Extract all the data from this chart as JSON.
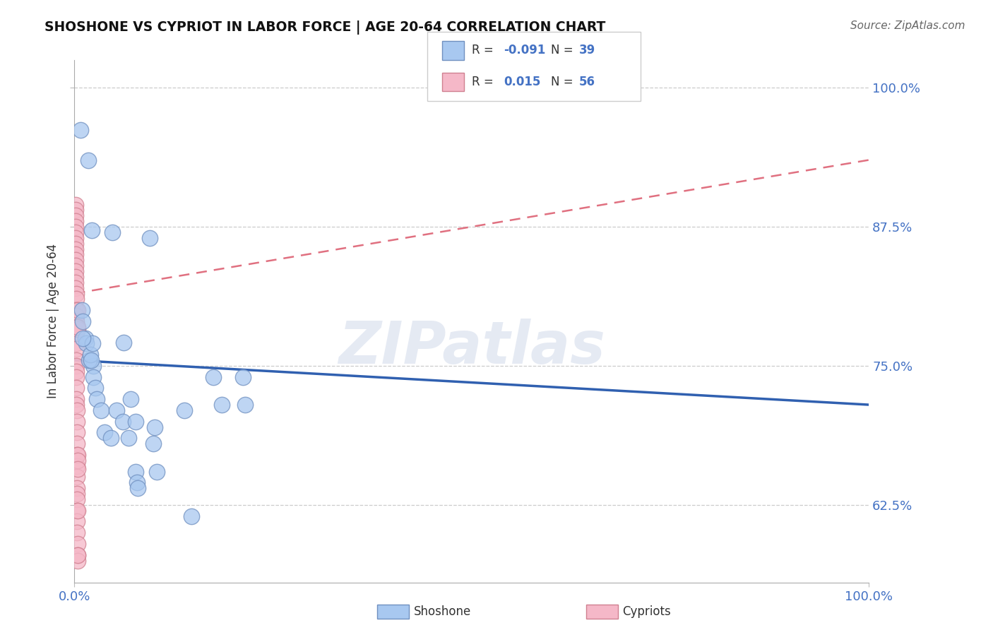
{
  "title": "SHOSHONE VS CYPRIOT IN LABOR FORCE | AGE 20-64 CORRELATION CHART",
  "source": "Source: ZipAtlas.com",
  "ylabel": "In Labor Force | Age 20-64",
  "xlim": [
    0.0,
    1.0
  ],
  "ylim": [
    0.555,
    1.025
  ],
  "yticks": [
    0.625,
    0.75,
    0.875,
    1.0
  ],
  "ytick_labels": [
    "62.5%",
    "75.0%",
    "87.5%",
    "100.0%"
  ],
  "xtick_labels": [
    "0.0%",
    "100.0%"
  ],
  "legend_shoshone_R": "-0.091",
  "legend_shoshone_N": "39",
  "legend_cypriot_R": "0.015",
  "legend_cypriot_N": "56",
  "legend_shoshone_label": "Shoshone",
  "legend_cypriot_label": "Cypriots",
  "shoshone_color": "#a8c8f0",
  "cypriot_color": "#f5b8c8",
  "shoshone_edge_color": "#7090c0",
  "cypriot_edge_color": "#d08090",
  "shoshone_line_color": "#3060b0",
  "cypriot_line_color": "#e07080",
  "watermark_text": "ZIPatlas",
  "shoshone_trend_x0": 0.0,
  "shoshone_trend_y0": 0.755,
  "shoshone_trend_x1": 1.0,
  "shoshone_trend_y1": 0.715,
  "cypriot_trend_x0": 0.0,
  "cypriot_trend_y0": 0.815,
  "cypriot_trend_x1": 1.0,
  "cypriot_trend_y1": 0.935,
  "shoshone_x": [
    0.008,
    0.022,
    0.048,
    0.062,
    0.095,
    0.138,
    0.175,
    0.185,
    0.017,
    0.024,
    0.009,
    0.01,
    0.014,
    0.015,
    0.018,
    0.02,
    0.021,
    0.023,
    0.024,
    0.026,
    0.028,
    0.033,
    0.038,
    0.046,
    0.053,
    0.061,
    0.068,
    0.071,
    0.077,
    0.077,
    0.079,
    0.08,
    0.099,
    0.101,
    0.104,
    0.147,
    0.212,
    0.215,
    0.01
  ],
  "shoshone_y": [
    0.962,
    0.872,
    0.87,
    0.771,
    0.865,
    0.71,
    0.74,
    0.715,
    0.935,
    0.75,
    0.8,
    0.79,
    0.775,
    0.77,
    0.755,
    0.76,
    0.755,
    0.77,
    0.74,
    0.73,
    0.72,
    0.71,
    0.69,
    0.685,
    0.71,
    0.7,
    0.685,
    0.72,
    0.7,
    0.655,
    0.645,
    0.64,
    0.68,
    0.695,
    0.655,
    0.615,
    0.74,
    0.715,
    0.775
  ],
  "cypriot_x": [
    0.001,
    0.001,
    0.001,
    0.001,
    0.001,
    0.001,
    0.001,
    0.001,
    0.001,
    0.001,
    0.001,
    0.001,
    0.001,
    0.001,
    0.001,
    0.001,
    0.002,
    0.002,
    0.002,
    0.002,
    0.002,
    0.002,
    0.002,
    0.002,
    0.002,
    0.002,
    0.002,
    0.002,
    0.002,
    0.002,
    0.002,
    0.002,
    0.003,
    0.003,
    0.003,
    0.003,
    0.003,
    0.003,
    0.003,
    0.003,
    0.003,
    0.003,
    0.003,
    0.003,
    0.003,
    0.004,
    0.004,
    0.004,
    0.004,
    0.004,
    0.004,
    0.004,
    0.004,
    0.004,
    0.004,
    0.004
  ],
  "cypriot_y": [
    0.895,
    0.89,
    0.885,
    0.88,
    0.875,
    0.87,
    0.865,
    0.86,
    0.855,
    0.85,
    0.845,
    0.84,
    0.835,
    0.83,
    0.825,
    0.82,
    0.815,
    0.81,
    0.8,
    0.795,
    0.79,
    0.785,
    0.78,
    0.77,
    0.765,
    0.755,
    0.75,
    0.745,
    0.74,
    0.73,
    0.72,
    0.715,
    0.71,
    0.7,
    0.69,
    0.68,
    0.67,
    0.66,
    0.65,
    0.64,
    0.635,
    0.63,
    0.62,
    0.61,
    0.6,
    0.59,
    0.58,
    0.575,
    0.62,
    0.783,
    0.8,
    0.67,
    0.665,
    0.785,
    0.657,
    0.58
  ]
}
